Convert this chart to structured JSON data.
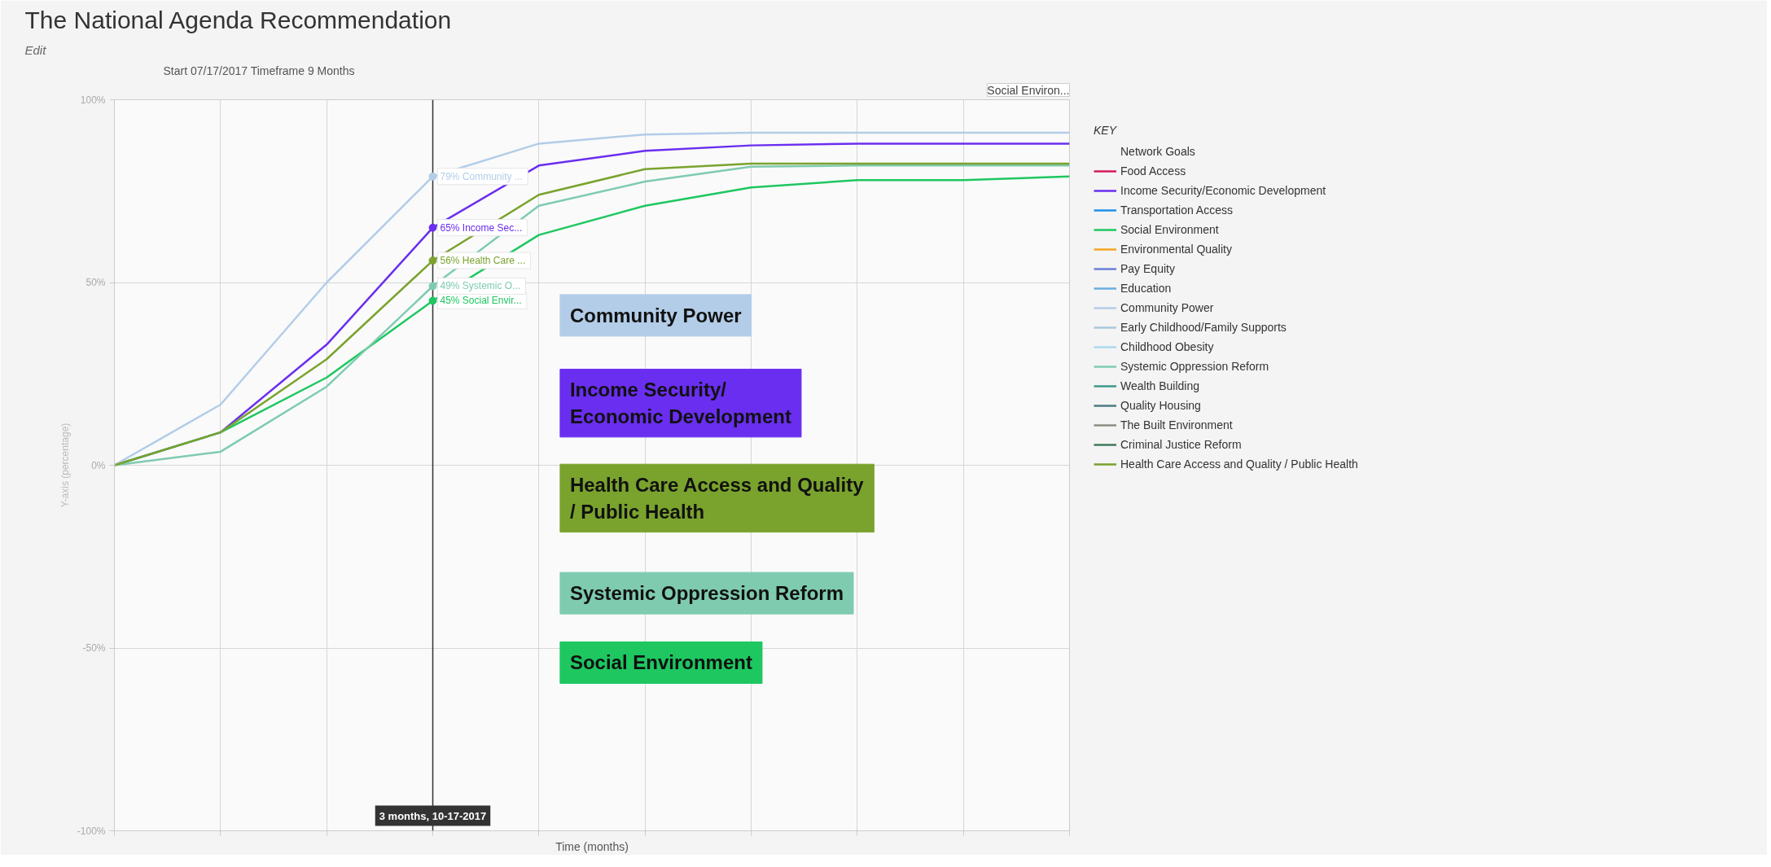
{
  "chart_data": {
    "type": "line",
    "title": "The National Agenda Recommendation",
    "subtitle": "Edit",
    "xlabel": "Time (months)",
    "ylabel": "Y-axis (percentage)",
    "legend_title": "KEY",
    "annotations": [
      "Start 07/17/2017 Timeframe 9 Months",
      "Social Environ...",
      "Network Goals",
      "3 months, 10-17-2017"
    ],
    "categories": [
      null,
      null,
      null,
      null,
      null,
      null,
      null,
      null,
      null,
      null
    ],
    "ylim": [
      -100,
      100
    ],
    "yticks": [
      {
        "value": -100,
        "label": "-100%"
      },
      {
        "value": -50,
        "label": "-50%"
      },
      {
        "value": 0,
        "label": "0%"
      },
      {
        "value": 50,
        "label": "50%"
      },
      {
        "value": 100,
        "label": "100%"
      }
    ],
    "tick_labels": "y",
    "grid": true,
    "legend": "right",
    "line_style": "solid",
    "series": [
      {
        "name": "Food Access",
        "color": "#d6195e",
        "values": [
          null,
          null,
          null,
          null,
          null,
          null,
          null,
          null,
          null,
          null
        ]
      },
      {
        "name": "Income Security/Economic Development",
        "color": "#6a2ef0",
        "values": [
          0,
          9,
          33,
          65,
          82,
          86,
          87.5,
          88,
          88,
          88
        ],
        "value_labels": [
          null,
          null,
          null,
          "65%  Income Sec...",
          null,
          null,
          null,
          null,
          null,
          null
        ]
      },
      {
        "name": "Transportation Access",
        "color": "#1e90e8",
        "values": [
          null,
          null,
          null,
          null,
          null,
          null,
          null,
          null,
          null,
          null
        ]
      },
      {
        "name": "Social Environment",
        "color": "#1ec760",
        "values": [
          0,
          9,
          24,
          45,
          63,
          71,
          76,
          78,
          78,
          79
        ],
        "value_labels": [
          null,
          null,
          null,
          "45%  Social Envir...",
          null,
          null,
          null,
          null,
          null,
          null
        ]
      },
      {
        "name": "Environmental Quality",
        "color": "#f5a623",
        "values": [
          null,
          null,
          null,
          null,
          null,
          null,
          null,
          null,
          null,
          null
        ]
      },
      {
        "name": "Pay Equity",
        "color": "#6b7fd7",
        "values": [
          null,
          null,
          null,
          null,
          null,
          null,
          null,
          null,
          null,
          null
        ]
      },
      {
        "name": "Education",
        "color": "#6aaee0",
        "values": [
          null,
          null,
          null,
          null,
          null,
          null,
          null,
          null,
          null,
          null
        ]
      },
      {
        "name": "Community Power",
        "color": "#b3cde8",
        "values": [
          0,
          16.6,
          50,
          79,
          88,
          90.5,
          91,
          91,
          91,
          91
        ],
        "value_labels": [
          null,
          null,
          null,
          "79%  Community ...",
          null,
          null,
          null,
          null,
          null,
          null
        ]
      },
      {
        "name": "Early Childhood/Family Supports",
        "color": "#a9c8dc",
        "values": [
          null,
          null,
          null,
          null,
          null,
          null,
          null,
          null,
          null,
          null
        ]
      },
      {
        "name": "Childhood Obesity",
        "color": "#acd8ef",
        "values": [
          null,
          null,
          null,
          null,
          null,
          null,
          null,
          null,
          null,
          null
        ]
      },
      {
        "name": "Systemic Oppression Reform",
        "color": "#7fcbb0",
        "values": [
          0,
          3.7,
          21.5,
          49,
          71,
          77.6,
          81.7,
          82,
          82,
          82
        ],
        "value_labels": [
          null,
          null,
          null,
          "49%  Systemic O...",
          null,
          null,
          null,
          null,
          null,
          null
        ]
      },
      {
        "name": "Wealth Building",
        "color": "#3d9a8b",
        "values": [
          null,
          null,
          null,
          null,
          null,
          null,
          null,
          null,
          null,
          null
        ]
      },
      {
        "name": "Quality Housing",
        "color": "#4a7c80",
        "values": [
          null,
          null,
          null,
          null,
          null,
          null,
          null,
          null,
          null,
          null
        ]
      },
      {
        "name": "The Built Environment",
        "color": "#8a8f80",
        "values": [
          null,
          null,
          null,
          null,
          null,
          null,
          null,
          null,
          null,
          null
        ]
      },
      {
        "name": "Criminal Justice Reform",
        "color": "#3f7a5a",
        "values": [
          null,
          null,
          null,
          null,
          null,
          null,
          null,
          null,
          null,
          null
        ]
      },
      {
        "name": "Health Care Access and Quality / Public Health",
        "color": "#7aa32e",
        "values": [
          0,
          9,
          29,
          56,
          74,
          81,
          82.5,
          82.5,
          82.5,
          82.5
        ],
        "value_labels": [
          null,
          null,
          null,
          "56%  Health Care ...",
          null,
          null,
          null,
          null,
          null,
          null
        ]
      }
    ]
  }
}
